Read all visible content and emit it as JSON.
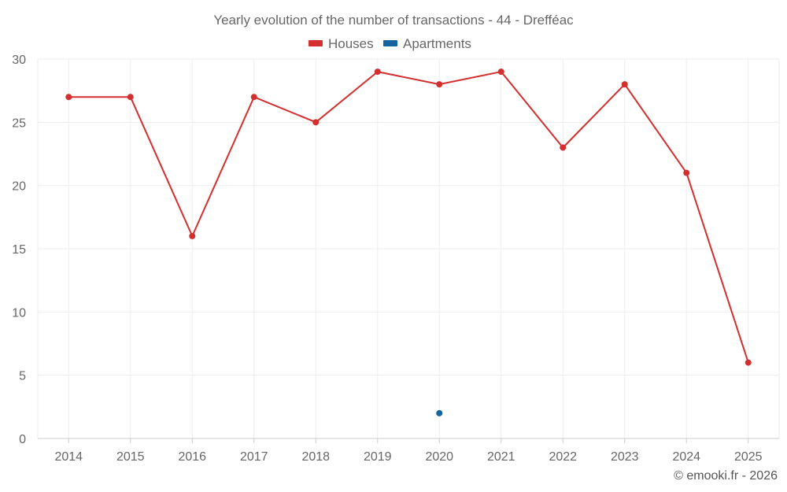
{
  "chart_data": {
    "type": "line",
    "title": "Yearly evolution of the number of transactions - 44 - Drefféac",
    "xlabel": "",
    "ylabel": "",
    "categories": [
      "2014",
      "2015",
      "2016",
      "2017",
      "2018",
      "2019",
      "2020",
      "2021",
      "2022",
      "2023",
      "2024",
      "2025"
    ],
    "ylim": [
      0,
      30
    ],
    "yticks": [
      "0",
      "5",
      "10",
      "15",
      "20",
      "25",
      "30"
    ],
    "grid": true,
    "legend_position": "top-center",
    "series": [
      {
        "name": "Houses",
        "color": "#d32f2f",
        "values": [
          27,
          27,
          16,
          27,
          25,
          29,
          28,
          29,
          23,
          28,
          21,
          6
        ]
      },
      {
        "name": "Apartments",
        "color": "#1565a0",
        "values": [
          null,
          null,
          null,
          null,
          null,
          null,
          2,
          null,
          null,
          null,
          null,
          null
        ]
      }
    ]
  },
  "credit": "© emooki.fr - 2026"
}
